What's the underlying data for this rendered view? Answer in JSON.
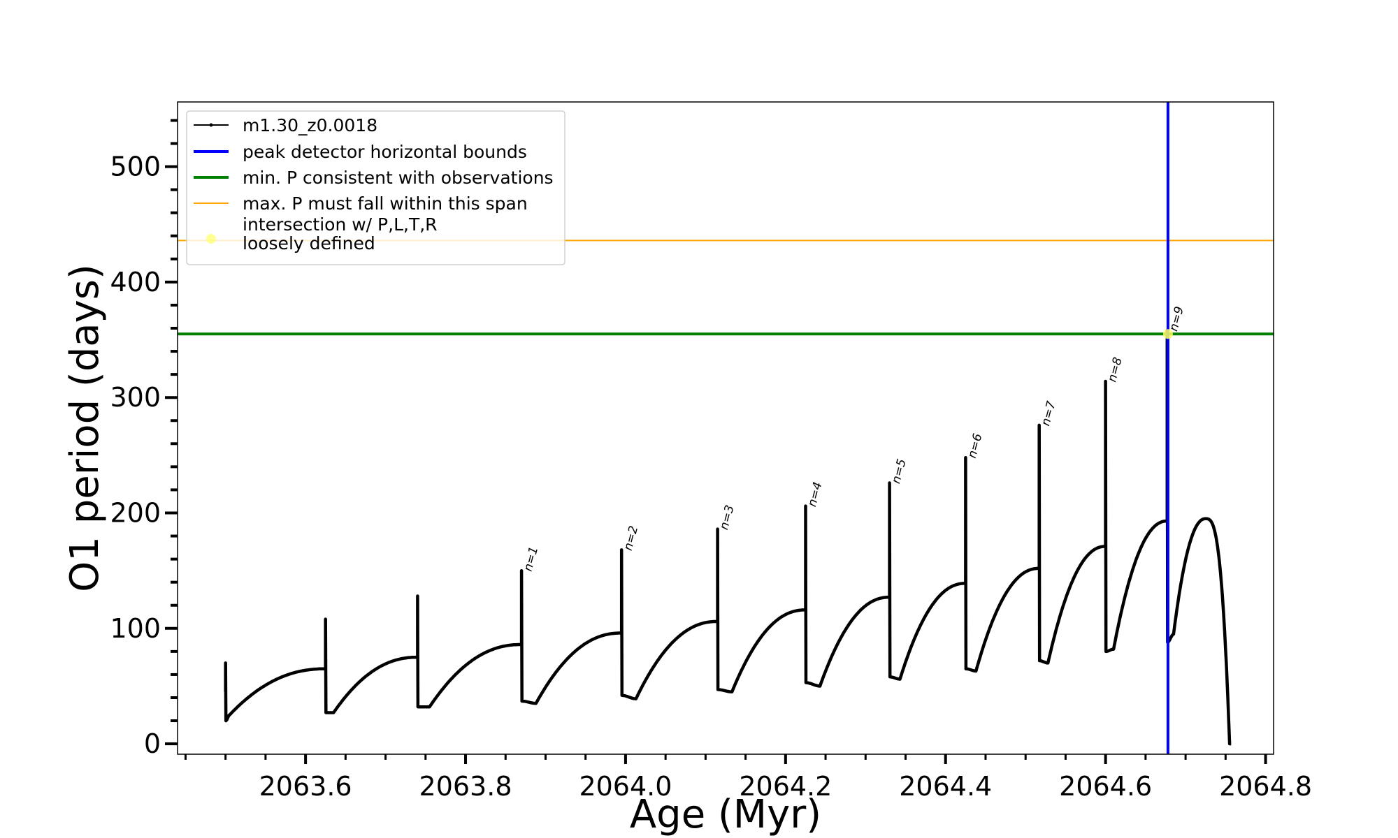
{
  "chart_data": {
    "type": "line",
    "title": "",
    "xlabel": "Age (Myr)",
    "ylabel": "O1 period (days)",
    "xlim": [
      2063.44,
      2064.81
    ],
    "ylim": [
      -9,
      556
    ],
    "x_ticks": [
      2063.6,
      2063.8,
      2064.0,
      2064.2,
      2064.4,
      2064.6,
      2064.8
    ],
    "x_tick_labels": [
      "2063.6",
      "2063.8",
      "2064.0",
      "2064.2",
      "2064.4",
      "2064.6",
      "2064.8"
    ],
    "x_minor_step": 0.05,
    "y_ticks": [
      0,
      100,
      200,
      300,
      400,
      500
    ],
    "y_tick_labels": [
      "0",
      "100",
      "200",
      "300",
      "400",
      "500"
    ],
    "y_minor_step": 20,
    "grid": false,
    "legend_position": "top-left",
    "legend": [
      {
        "label": "m1.30_z0.0018",
        "style": "marker-line",
        "color": "#000000"
      },
      {
        "label": "peak detector horizontal bounds",
        "style": "line",
        "color": "#0000ff"
      },
      {
        "label": "min. P consistent with observations",
        "style": "line",
        "color": "#008000"
      },
      {
        "label": "max. P must fall within this span",
        "style": "thin-line",
        "color": "#ffa500"
      },
      {
        "label": "intersection w/ P,L,T,R",
        "label2": "loosely defined",
        "style": "dot",
        "color": "#ffff66"
      }
    ],
    "horizontal_lines": [
      {
        "name": "min. P consistent with observations",
        "y": 355,
        "color": "#008000"
      },
      {
        "name": "max. P must fall within this span",
        "y": 436,
        "color": "#ffa500"
      }
    ],
    "vertical_lines": [
      {
        "name": "peak detector horizontal bounds",
        "x": 2064.678,
        "color": "#0000ff"
      }
    ],
    "intersection_point": {
      "x": 2064.678,
      "y": 355,
      "color": "#ffff66"
    },
    "series": [
      {
        "name": "m1.30_z0.0018",
        "color": "#000000",
        "pulses": [
          {
            "x_flash": 2063.5,
            "pre_flash": 45,
            "peak": 70,
            "min_after": 20,
            "x_dip": 2063.505,
            "dip": 25,
            "end": 65
          },
          {
            "x_flash": 2063.625,
            "pre_flash": 65,
            "peak": 108,
            "min_after": 27,
            "x_dip": 2063.635,
            "dip": 27,
            "end": 75
          },
          {
            "x_flash": 2063.74,
            "pre_flash": 75,
            "peak": 128,
            "min_after": 32,
            "x_dip": 2063.755,
            "dip": 32,
            "end": 86
          },
          {
            "x_flash": 2063.87,
            "pre_flash": 86,
            "peak": 150,
            "min_after": 37,
            "x_dip": 2063.888,
            "dip": 35,
            "end": 96
          },
          {
            "x_flash": 2063.995,
            "pre_flash": 96,
            "peak": 168,
            "min_after": 42,
            "x_dip": 2064.013,
            "dip": 39,
            "end": 106
          },
          {
            "x_flash": 2064.115,
            "pre_flash": 106,
            "peak": 186,
            "min_after": 47,
            "x_dip": 2064.133,
            "dip": 45,
            "end": 116
          },
          {
            "x_flash": 2064.225,
            "pre_flash": 116,
            "peak": 206,
            "min_after": 53,
            "x_dip": 2064.243,
            "dip": 50,
            "end": 127
          },
          {
            "x_flash": 2064.33,
            "pre_flash": 127,
            "peak": 226,
            "min_after": 58,
            "x_dip": 2064.343,
            "dip": 56,
            "end": 139
          },
          {
            "x_flash": 2064.425,
            "pre_flash": 139,
            "peak": 248,
            "min_after": 65,
            "x_dip": 2064.438,
            "dip": 63,
            "end": 152
          },
          {
            "x_flash": 2064.517,
            "pre_flash": 152,
            "peak": 276,
            "min_after": 72,
            "x_dip": 2064.528,
            "dip": 70,
            "end": 171
          },
          {
            "x_flash": 2064.6,
            "pre_flash": 171,
            "peak": 314,
            "min_after": 80,
            "x_dip": 2064.61,
            "dip": 82,
            "end": 193
          },
          {
            "x_flash": 2064.677,
            "pre_flash": 193,
            "peak": 358,
            "min_after": 88,
            "x_dip": 2064.685,
            "dip": 95,
            "end": 195
          }
        ],
        "final_phase": {
          "x_peak": 2064.725,
          "peak": 195,
          "x_end": 2064.755,
          "end": 0
        }
      }
    ],
    "peak_labels": [
      {
        "text": "n=1",
        "x": 2063.87,
        "y": 150
      },
      {
        "text": "n=2",
        "x": 2063.995,
        "y": 168
      },
      {
        "text": "n=3",
        "x": 2064.115,
        "y": 186
      },
      {
        "text": "n=4",
        "x": 2064.225,
        "y": 206
      },
      {
        "text": "n=5",
        "x": 2064.33,
        "y": 226
      },
      {
        "text": "n=6",
        "x": 2064.425,
        "y": 248
      },
      {
        "text": "n=7",
        "x": 2064.517,
        "y": 276
      },
      {
        "text": "n=8",
        "x": 2064.6,
        "y": 314
      },
      {
        "text": "n=9",
        "x": 2064.677,
        "y": 358
      }
    ]
  }
}
